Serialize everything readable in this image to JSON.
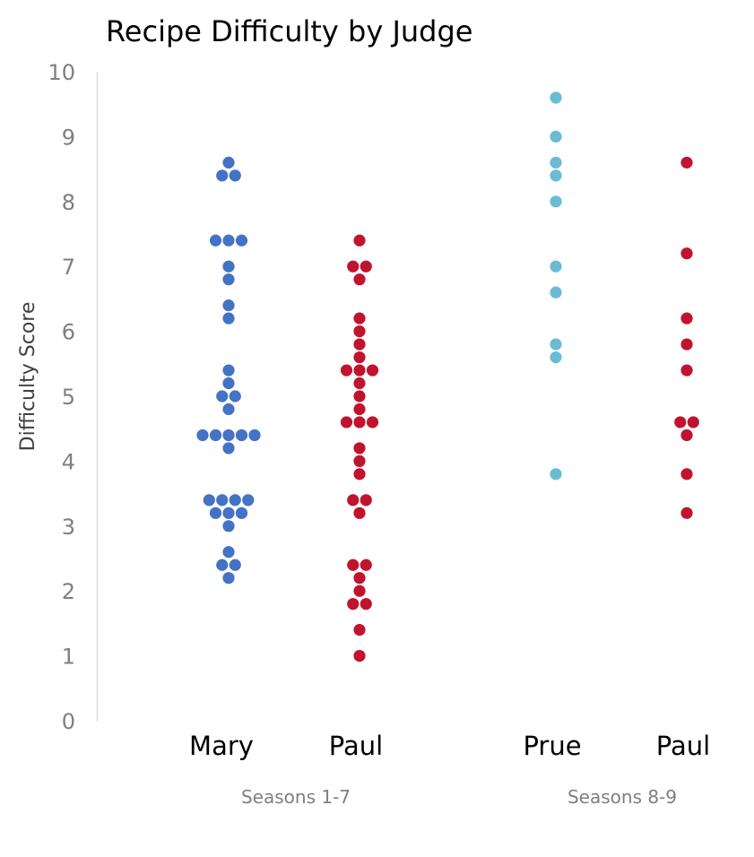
{
  "chart_data": {
    "type": "scatter",
    "subtype": "beeswarm",
    "title": "Recipe Difficulty by Judge",
    "xlabel": "",
    "ylabel": "Difficulty Score",
    "ylim": [
      0,
      10
    ],
    "yticks": [
      "0",
      "1",
      "2",
      "3",
      "4",
      "5",
      "6",
      "7",
      "8",
      "9",
      "10"
    ],
    "groups": [
      "Seasons 1-7",
      "Seasons 8-9"
    ],
    "series": [
      {
        "name": "Mary",
        "group": "Seasons 1-7",
        "color": "#4472C4",
        "values": [
          8.6,
          8.4,
          8.4,
          7.4,
          7.4,
          7.4,
          7.0,
          6.8,
          6.4,
          6.2,
          5.4,
          5.2,
          5.0,
          5.0,
          4.8,
          4.4,
          4.4,
          4.4,
          4.4,
          4.4,
          4.2,
          3.4,
          3.4,
          3.4,
          3.4,
          3.2,
          3.2,
          3.2,
          3.0,
          2.6,
          2.4,
          2.4,
          2.2
        ]
      },
      {
        "name": "Paul",
        "group": "Seasons 1-7",
        "color": "#C0142E",
        "values": [
          7.4,
          7.0,
          7.0,
          6.8,
          6.2,
          6.0,
          5.8,
          5.6,
          5.4,
          5.4,
          5.4,
          5.2,
          5.0,
          4.8,
          4.6,
          4.6,
          4.6,
          4.2,
          4.0,
          3.8,
          3.4,
          3.4,
          3.2,
          2.4,
          2.4,
          2.2,
          2.0,
          1.8,
          1.8,
          1.4,
          1.0
        ]
      },
      {
        "name": "Prue",
        "group": "Seasons 8-9",
        "color": "#6BBCD0",
        "values": [
          9.6,
          9.0,
          8.6,
          8.4,
          8.0,
          7.0,
          6.6,
          5.8,
          5.6,
          3.8
        ]
      },
      {
        "name": "Paul",
        "group": "Seasons 8-9",
        "color": "#C0142E",
        "values": [
          8.6,
          7.2,
          6.2,
          5.8,
          5.4,
          4.6,
          4.6,
          4.4,
          3.8,
          3.2
        ]
      }
    ]
  }
}
